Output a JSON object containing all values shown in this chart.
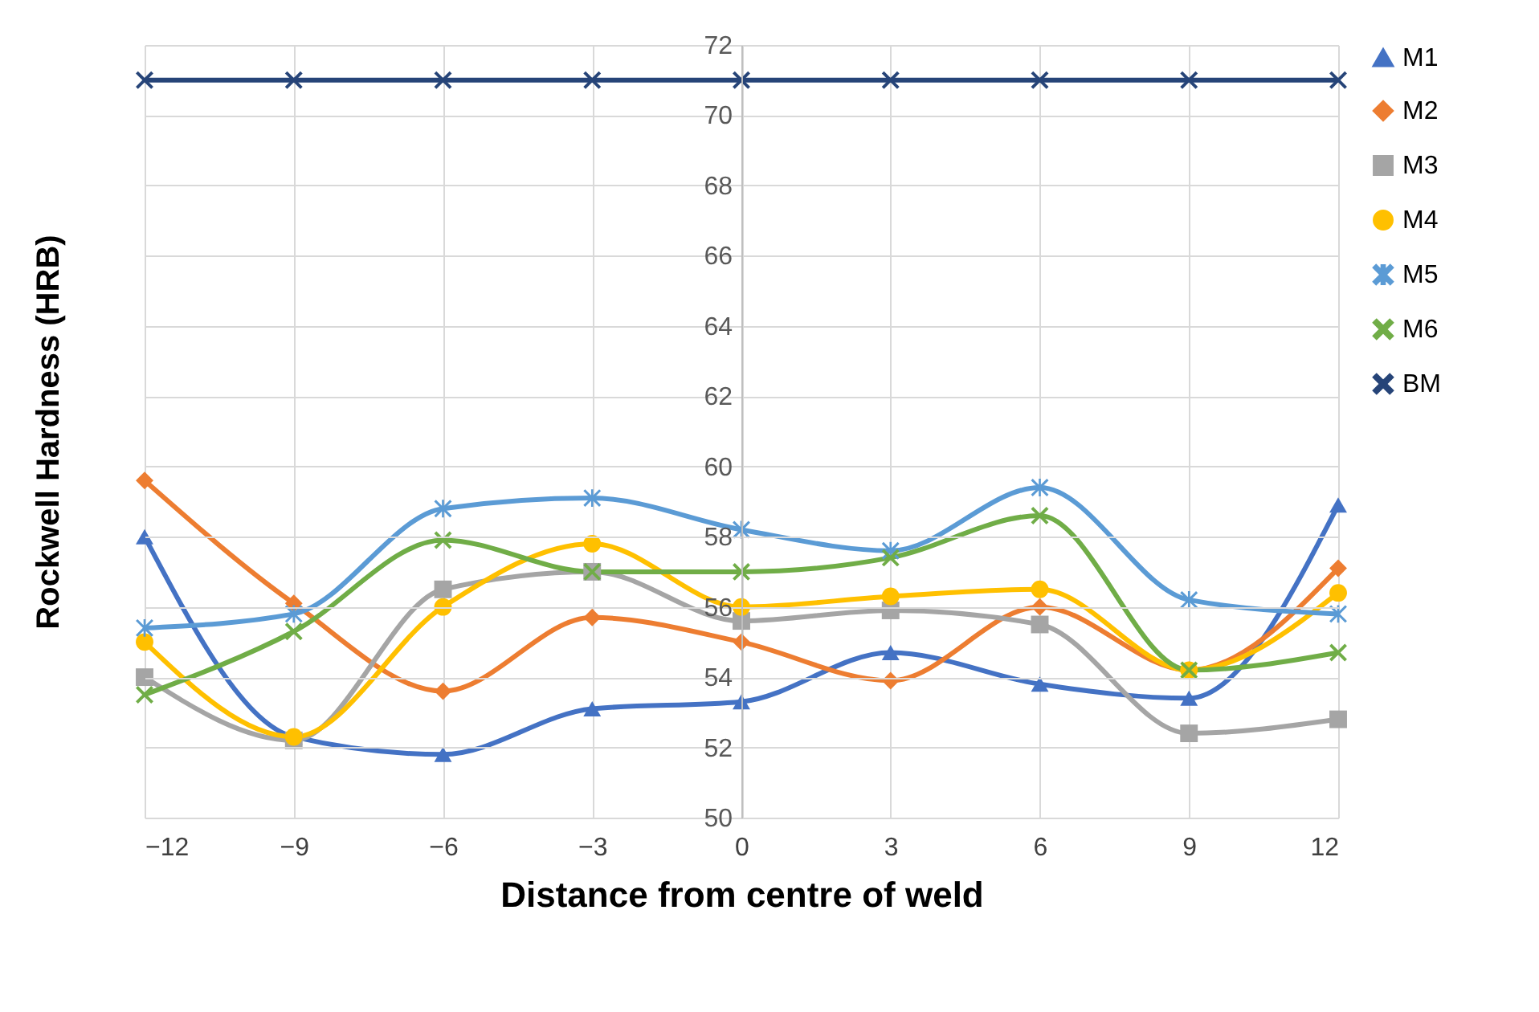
{
  "chart_data": {
    "type": "line",
    "xlabel": "Distance from centre of weld",
    "ylabel": "Rockwell Hardness (HRB)",
    "x": [
      -12,
      -9,
      -6,
      -3,
      0,
      3,
      6,
      9,
      12
    ],
    "xlim": [
      -12,
      12
    ],
    "xticks": [
      -12,
      -9,
      -6,
      -3,
      0,
      3,
      6,
      9,
      12
    ],
    "ylim": [
      50,
      72
    ],
    "yticks": [
      50,
      52,
      54,
      56,
      58,
      60,
      62,
      64,
      66,
      68,
      70,
      72
    ],
    "grid": true,
    "legend": "right",
    "series": [
      {
        "name": "M1",
        "color": "#4472c4",
        "marker": "triangle",
        "values": [
          58.0,
          52.3,
          51.8,
          53.1,
          53.3,
          54.7,
          53.8,
          53.4,
          58.9
        ]
      },
      {
        "name": "M2",
        "color": "#ed7d31",
        "marker": "diamond",
        "values": [
          59.6,
          56.1,
          53.6,
          55.7,
          55.0,
          53.9,
          56.0,
          54.2,
          57.1
        ]
      },
      {
        "name": "M3",
        "color": "#a5a5a5",
        "marker": "square",
        "values": [
          54.0,
          52.2,
          56.5,
          57.0,
          55.6,
          55.9,
          55.5,
          52.4,
          52.8
        ]
      },
      {
        "name": "M4",
        "color": "#ffc000",
        "marker": "circle",
        "values": [
          55.0,
          52.3,
          56.0,
          57.8,
          56.0,
          56.3,
          56.5,
          54.2,
          56.4
        ]
      },
      {
        "name": "M5",
        "color": "#5b9bd5",
        "marker": "star",
        "values": [
          55.4,
          55.8,
          58.8,
          59.1,
          58.2,
          57.6,
          59.4,
          56.2,
          55.8
        ]
      },
      {
        "name": "M6",
        "color": "#70ad47",
        "marker": "cross",
        "values": [
          53.5,
          55.3,
          57.9,
          57.0,
          57.0,
          57.4,
          58.6,
          54.2,
          54.7
        ]
      },
      {
        "name": "BM",
        "color": "#264478",
        "marker": "cross",
        "values": [
          71,
          71,
          71,
          71,
          71,
          71,
          71,
          71,
          71
        ]
      }
    ]
  }
}
